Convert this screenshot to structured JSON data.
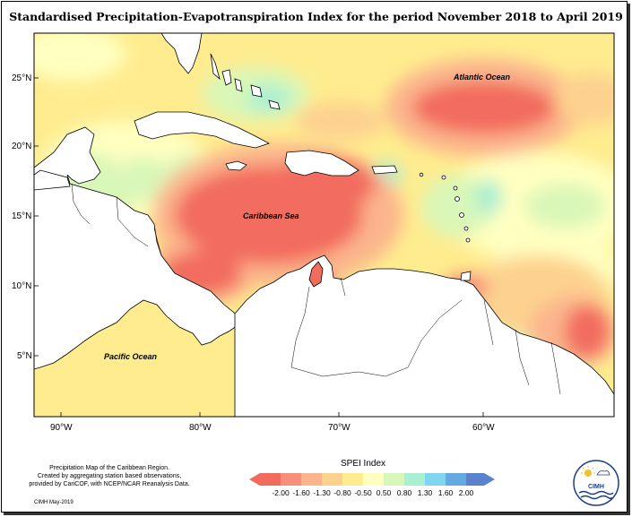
{
  "title": "Standardised Precipitation-Evapotranspiration Index for the period November 2018 to April 2019",
  "map": {
    "lat_ticks": [
      "25°N",
      "20°N",
      "15°N",
      "10°N",
      "5°N"
    ],
    "lon_ticks": [
      "90°W",
      "80°W",
      "70°W",
      "60°W"
    ],
    "labels": {
      "atlantic": "Atlantic Ocean",
      "caribbean": "Caribbean Sea",
      "pacific": "Pacific Ocean"
    },
    "land_color": "#ffffff",
    "coast_color": "#000000"
  },
  "legend": {
    "title": "SPEI Index",
    "ticks": [
      "-2.00",
      "-1.60",
      "-1.30",
      "-0.80",
      "-0.50",
      "0.50",
      "0.80",
      "1.30",
      "1.60",
      "2.00"
    ],
    "colors": [
      "#f26c5e",
      "#f6907a",
      "#fbb58c",
      "#fdd28f",
      "#ffec8f",
      "#ffffc0",
      "#d9f7b8",
      "#a9efd2",
      "#7fd6ee",
      "#64a9e0",
      "#5b82cc"
    ]
  },
  "footnote": {
    "line1": "Precipitation Map of the Caribbean Region.",
    "line2": "Created by aggregating station based observations,",
    "line3": "provided by CariCOF, with NCEP/NCAR Reanalysis Data.",
    "date": "CIMH May-2019"
  },
  "logo": {
    "text": "CIMH",
    "icon": "cimh-logo-icon"
  }
}
